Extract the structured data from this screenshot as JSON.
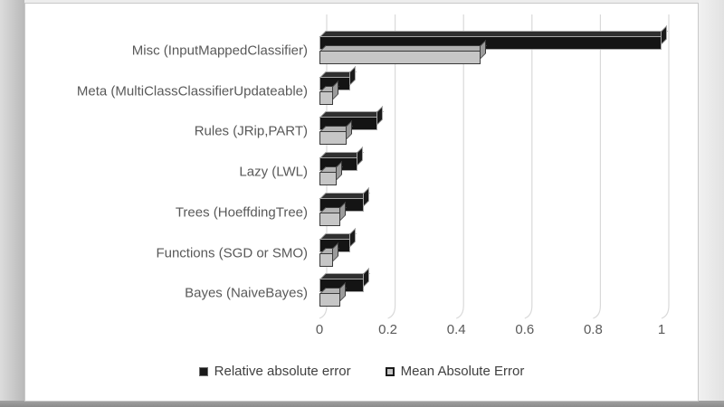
{
  "chart_data": {
    "type": "bar",
    "orientation": "horizontal",
    "style": "3d",
    "title": "",
    "xlabel": "",
    "ylabel": "",
    "xlim": [
      0,
      1
    ],
    "grid": true,
    "legend_position": "bottom",
    "categories": [
      "Misc (InputMappedClassifier)",
      "Meta (MultiClassClassifierUpdateable)",
      "Rules (JRip,PART)",
      "Lazy (LWL)",
      "Trees (HoeffdingTree)",
      "Functions (SGD or SMO)",
      "Bayes (NaiveBayes)"
    ],
    "series": [
      {
        "name": "Relative absolute error",
        "color": "#1a1a1a",
        "values": [
          1.0,
          0.09,
          0.17,
          0.11,
          0.13,
          0.09,
          0.13
        ]
      },
      {
        "name": "Mean Absolute Error",
        "color": "#c6c6c6",
        "values": [
          0.47,
          0.04,
          0.08,
          0.05,
          0.06,
          0.04,
          0.06
        ]
      }
    ],
    "x_ticks": [
      0,
      0.2,
      0.4,
      0.6,
      0.8,
      1
    ],
    "x_tick_labels": [
      "0",
      "0.2",
      "0.4",
      "0.6",
      "0.8",
      "1"
    ]
  }
}
